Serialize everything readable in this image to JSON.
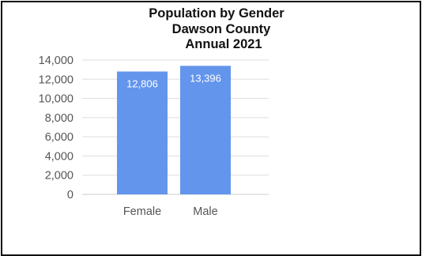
{
  "chart_data": {
    "type": "bar",
    "title_lines": [
      "Population by Gender",
      "Dawson County",
      "Annual 2021"
    ],
    "categories": [
      "Female",
      "Male"
    ],
    "values": [
      12806,
      13396
    ],
    "data_labels": [
      "12,806",
      "13,396"
    ],
    "ylim": [
      0,
      14000
    ],
    "yticks": [
      0,
      2000,
      4000,
      6000,
      8000,
      10000,
      12000,
      14000
    ],
    "ytick_labels": [
      "0",
      "2,000",
      "4,000",
      "6,000",
      "8,000",
      "10,000",
      "12,000",
      "14,000"
    ],
    "xlabel": "",
    "ylabel": "",
    "grid": true,
    "legend": "none",
    "colors": {
      "bar": "#6395ec",
      "grid": "#dddddd",
      "tick_text": "#555555",
      "title_text": "#111111",
      "data_label_text": "#ffffff",
      "frame": "#111111"
    }
  }
}
